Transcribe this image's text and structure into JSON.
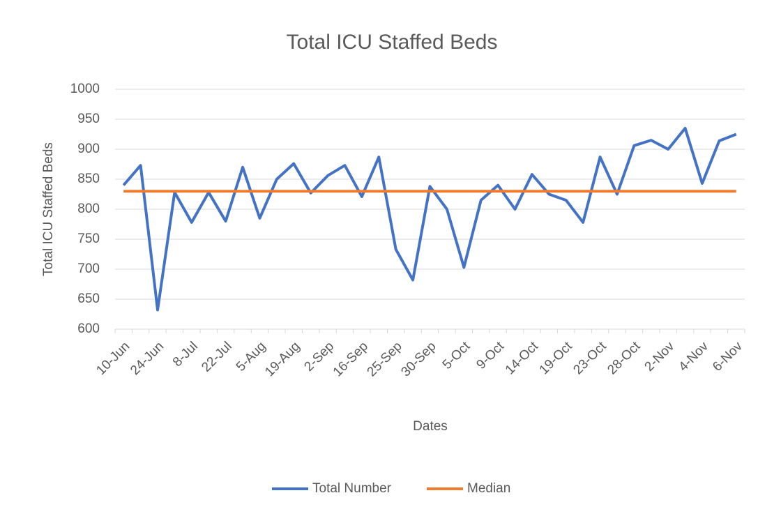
{
  "chart_data": {
    "type": "line",
    "title": "Total ICU Staffed Beds",
    "x_label": "Dates",
    "y_label": "Total ICU Staffed Beds",
    "categories": [
      "10-Jun",
      null,
      "24-Jun",
      null,
      "8-Jul",
      null,
      "22-Jul",
      null,
      "5-Aug",
      null,
      "19-Aug",
      null,
      "2-Sep",
      null,
      "16-Sep",
      null,
      "25-Sep",
      null,
      "30-Sep",
      null,
      "5-Oct",
      null,
      "9-Oct",
      null,
      "14-Oct",
      null,
      "19-Oct",
      null,
      "23-Oct",
      null,
      "28-Oct",
      null,
      "2-Nov",
      null,
      "4-Nov",
      null,
      "6-Nov"
    ],
    "series": [
      {
        "name": "Total Number",
        "color": "#4472c4",
        "values": [
          840,
          873,
          632,
          828,
          778,
          828,
          780,
          870,
          785,
          850,
          876,
          827,
          856,
          873,
          821,
          887,
          733,
          682,
          838,
          800,
          703,
          815,
          840,
          800,
          858,
          825,
          815,
          778,
          887,
          825,
          906,
          915,
          900,
          935,
          843,
          914,
          925
        ]
      },
      {
        "name": "Median",
        "color": "#ed7d31",
        "values": [
          830,
          830,
          830,
          830,
          830,
          830,
          830,
          830,
          830,
          830,
          830,
          830,
          830,
          830,
          830,
          830,
          830,
          830,
          830,
          830,
          830,
          830,
          830,
          830,
          830,
          830,
          830,
          830,
          830,
          830,
          830,
          830,
          830,
          830,
          830,
          830,
          830
        ]
      }
    ],
    "ylim": [
      600,
      1000
    ],
    "yticks": [
      600,
      650,
      700,
      750,
      800,
      850,
      900,
      950,
      1000
    ],
    "grid": true,
    "legend": "bottom"
  }
}
